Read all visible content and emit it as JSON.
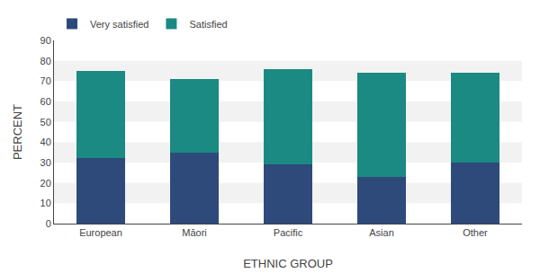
{
  "chart_data": {
    "type": "bar",
    "stacked": true,
    "categories": [
      "European",
      "Māori",
      "Pacific",
      "Asian",
      "Other"
    ],
    "series": [
      {
        "name": "Very satisfied",
        "color": "#2d4a7a",
        "values": [
          32,
          35,
          29,
          23,
          30
        ]
      },
      {
        "name": "Satisfied",
        "color": "#1a8a82",
        "values": [
          43,
          36,
          47,
          51,
          44
        ]
      }
    ],
    "xlabel": "ETHNIC GROUP",
    "ylabel": "PERCENT",
    "ylim": [
      0,
      90
    ],
    "yticks": [
      0,
      10,
      20,
      30,
      40,
      50,
      60,
      70,
      80,
      90
    ],
    "grid": false,
    "legend": "upper left"
  }
}
